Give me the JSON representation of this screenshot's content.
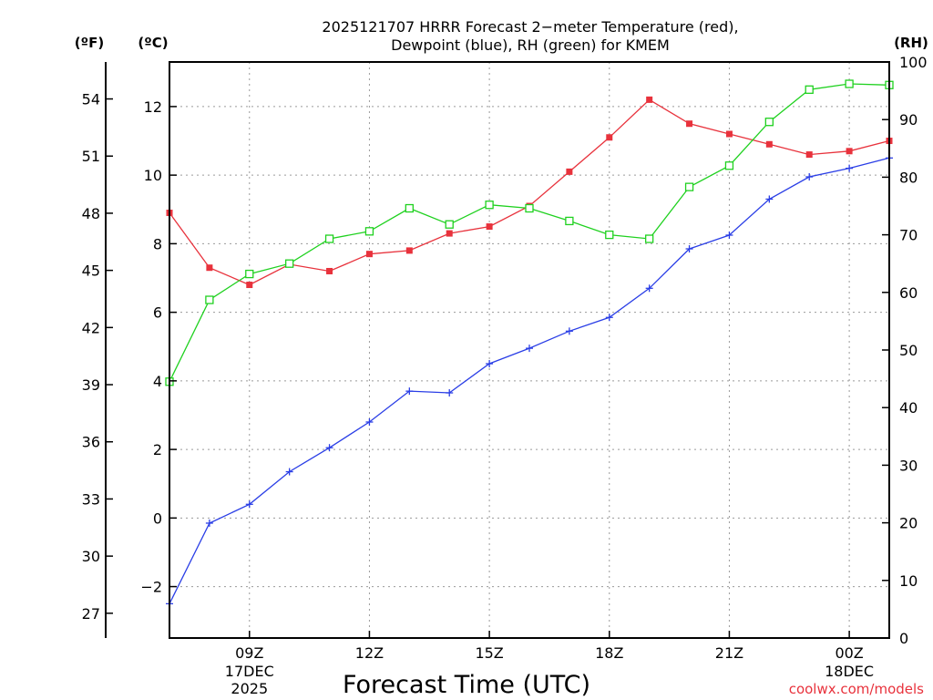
{
  "chart_data": {
    "type": "line",
    "title_line1": "2025121707 HRRR Forecast 2−meter Temperature (red),",
    "title_line2": "Dewpoint (blue), RH (green) for KMEM",
    "xlabel": "Forecast Time (UTC)",
    "unit_left_f": "(ºF)",
    "unit_left_c": "(ºC)",
    "unit_right": "(RH)",
    "credit": "coolwx.com/models",
    "x_hours": [
      7,
      8,
      9,
      10,
      11,
      12,
      13,
      14,
      15,
      16,
      17,
      18,
      19,
      20,
      21,
      22,
      23,
      24,
      25
    ],
    "x_ticks": [
      {
        "hour": 9,
        "label": "09Z",
        "line2": "17DEC",
        "line3": "2025"
      },
      {
        "hour": 12,
        "label": "12Z"
      },
      {
        "hour": 15,
        "label": "15Z"
      },
      {
        "hour": 18,
        "label": "18Z"
      },
      {
        "hour": 21,
        "label": "21Z"
      },
      {
        "hour": 24,
        "label": "00Z",
        "line2": "18DEC"
      }
    ],
    "celsius_axis": {
      "range": [
        -3.5,
        13.3
      ],
      "ticks": [
        -2,
        0,
        2,
        4,
        6,
        8,
        10,
        12
      ],
      "tick_labels": [
        "−2",
        "0",
        "2",
        "4",
        "6",
        "8",
        "10",
        "12"
      ]
    },
    "fahrenheit_ticks": [
      27,
      30,
      33,
      36,
      39,
      42,
      45,
      48,
      51,
      54
    ],
    "rh_axis": {
      "range": [
        0,
        100
      ],
      "ticks": [
        0,
        10,
        20,
        30,
        40,
        50,
        60,
        70,
        80,
        90,
        100
      ]
    },
    "series": [
      {
        "name": "Temperature",
        "unit": "C",
        "color": "#e8323c",
        "marker": "filled-square",
        "values": [
          8.9,
          7.3,
          6.8,
          7.4,
          7.2,
          7.7,
          7.8,
          8.3,
          8.5,
          9.1,
          10.1,
          11.1,
          12.2,
          11.5,
          11.2,
          10.9,
          10.6,
          10.7,
          11.0
        ]
      },
      {
        "name": "Dewpoint",
        "unit": "C",
        "color": "#2a3ee6",
        "marker": "plus",
        "values": [
          -2.5,
          -0.15,
          0.4,
          1.35,
          2.05,
          2.8,
          3.7,
          3.65,
          4.5,
          4.95,
          5.45,
          5.85,
          6.7,
          7.85,
          8.25,
          9.3,
          9.95,
          10.2,
          10.5
        ]
      },
      {
        "name": "RH",
        "unit": "%",
        "color": "#1fd11f",
        "marker": "open-square",
        "values": [
          44.5,
          58.7,
          63.2,
          65.0,
          69.3,
          70.6,
          74.6,
          71.8,
          75.2,
          74.6,
          72.4,
          70.0,
          69.3,
          78.3,
          82.0,
          89.6,
          95.2,
          96.2,
          96.0
        ]
      }
    ]
  }
}
